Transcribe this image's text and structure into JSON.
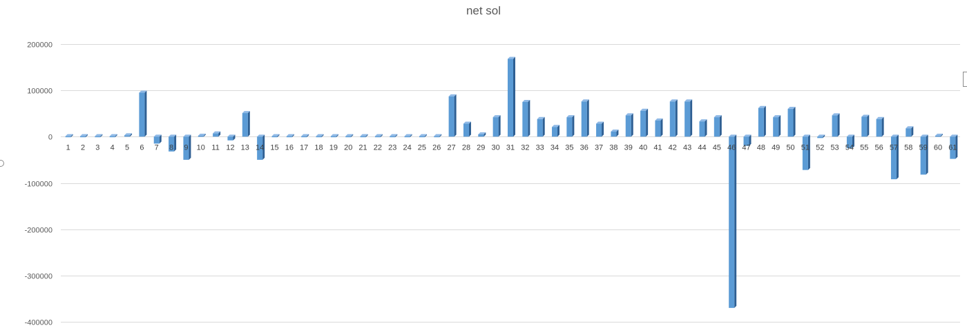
{
  "chart_data": {
    "type": "bar",
    "title": "net sol",
    "xlabel": "",
    "ylabel": "",
    "ylim": [
      -400000,
      200000
    ],
    "yticks": [
      200000,
      100000,
      0,
      -100000,
      -200000,
      -300000,
      -400000
    ],
    "ytick_labels": [
      "200000",
      "100000",
      "0",
      "-100000",
      "-200000",
      "-300000",
      "-400000"
    ],
    "grid": true,
    "legend": "none",
    "bar_color": "#5b9bd5",
    "categories": [
      "1",
      "2",
      "3",
      "4",
      "5",
      "6",
      "7",
      "8",
      "9",
      "10",
      "11",
      "12",
      "13",
      "14",
      "15",
      "16",
      "17",
      "18",
      "19",
      "20",
      "21",
      "22",
      "23",
      "24",
      "25",
      "26",
      "27",
      "28",
      "29",
      "30",
      "31",
      "32",
      "33",
      "34",
      "35",
      "36",
      "37",
      "38",
      "39",
      "40",
      "41",
      "42",
      "43",
      "44",
      "45",
      "46",
      "47",
      "48",
      "49",
      "50",
      "51",
      "52",
      "53",
      "54",
      "55",
      "56",
      "57",
      "58",
      "59",
      "60",
      "61"
    ],
    "series": [
      {
        "values": [
          1000,
          1000,
          1000,
          1000,
          3000,
          95000,
          -15000,
          -32000,
          -50000,
          2000,
          7000,
          -8000,
          51000,
          -50000,
          1000,
          1000,
          1000,
          1000,
          1000,
          1000,
          1000,
          1000,
          1000,
          1000,
          1000,
          1000,
          87000,
          28000,
          5000,
          42000,
          168000,
          75000,
          38000,
          21000,
          42000,
          76000,
          28000,
          11000,
          46000,
          56000,
          35000,
          76000,
          76000,
          33000,
          42000,
          -370000,
          -20000,
          62000,
          42000,
          60000,
          -72000,
          -3000,
          46000,
          -25000,
          43000,
          38000,
          -92000,
          18000,
          -82000,
          2000,
          -48000
        ]
      }
    ]
  }
}
